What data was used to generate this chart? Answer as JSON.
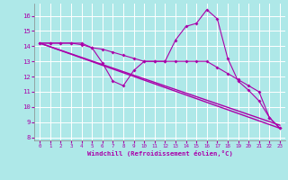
{
  "xlabel": "Windchill (Refroidissement éolien,°C)",
  "background_color": "#aee8e8",
  "grid_color": "#ffffff",
  "line_color": "#aa00aa",
  "xlim": [
    -0.5,
    23.5
  ],
  "ylim": [
    7.8,
    16.8
  ],
  "yticks": [
    8,
    9,
    10,
    11,
    12,
    13,
    14,
    15,
    16
  ],
  "xticks": [
    0,
    1,
    2,
    3,
    4,
    5,
    6,
    7,
    8,
    9,
    10,
    11,
    12,
    13,
    14,
    15,
    16,
    17,
    18,
    19,
    20,
    21,
    22,
    23
  ],
  "series1_x": [
    0,
    1,
    2,
    3,
    4,
    5,
    6,
    7,
    8,
    9,
    10,
    11,
    12,
    13,
    14,
    15,
    16,
    17,
    18,
    19,
    20,
    21,
    22,
    23
  ],
  "series1_y": [
    14.2,
    14.2,
    14.2,
    14.2,
    14.2,
    13.9,
    12.9,
    11.7,
    11.4,
    12.4,
    13.0,
    13.0,
    13.0,
    14.4,
    15.3,
    15.5,
    16.4,
    15.8,
    13.2,
    11.7,
    11.1,
    10.4,
    9.3,
    8.6
  ],
  "series2_x": [
    0,
    1,
    2,
    3,
    4,
    5,
    6,
    7,
    8,
    9,
    10,
    11,
    12,
    13,
    14,
    15,
    16,
    17,
    18,
    19,
    20,
    21,
    22,
    23
  ],
  "series2_y": [
    14.2,
    14.2,
    14.2,
    14.2,
    14.1,
    13.9,
    13.8,
    13.6,
    13.4,
    13.2,
    13.0,
    13.0,
    13.0,
    13.0,
    13.0,
    13.0,
    13.0,
    12.6,
    12.2,
    11.8,
    11.4,
    11.0,
    9.3,
    8.6
  ],
  "line3": [
    [
      0,
      14.2
    ],
    [
      23,
      8.6
    ]
  ],
  "line4": [
    [
      0,
      14.2
    ],
    [
      23,
      8.8
    ]
  ]
}
